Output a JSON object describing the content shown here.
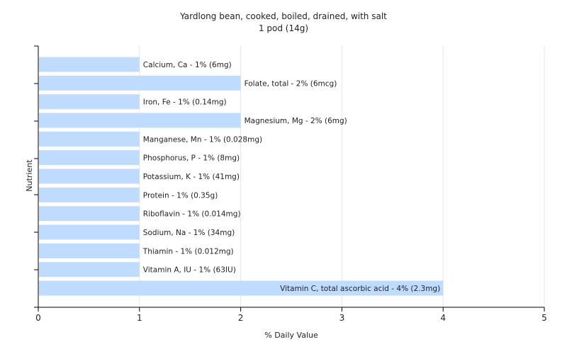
{
  "chart_data": {
    "type": "bar",
    "orientation": "horizontal",
    "title": "Yardlong bean, cooked, boiled, drained, with salt",
    "subtitle": "1 pod (14g)",
    "xlabel": "% Daily Value",
    "ylabel": "Nutrient",
    "xlim": [
      0,
      5
    ],
    "xticks": [
      "0",
      "1",
      "2",
      "3",
      "4",
      "5"
    ],
    "grid": "vertical",
    "bar_color": "#bfdcff",
    "categories": [
      "Calcium, Ca",
      "Folate, total",
      "Iron, Fe",
      "Magnesium, Mg",
      "Manganese, Mn",
      "Phosphorus, P",
      "Potassium, K",
      "Protein",
      "Riboflavin",
      "Sodium, Na",
      "Thiamin",
      "Vitamin A, IU",
      "Vitamin C, total ascorbic acid"
    ],
    "values": [
      1,
      2,
      1,
      2,
      1,
      1,
      1,
      1,
      1,
      1,
      1,
      1,
      4
    ],
    "labels": [
      "Calcium, Ca - 1% (6mg)",
      "Folate, total - 2% (6mcg)",
      "Iron, Fe - 1% (0.14mg)",
      "Magnesium, Mg - 2% (6mg)",
      "Manganese, Mn - 1% (0.028mg)",
      "Phosphorus, P - 1% (8mg)",
      "Potassium, K - 1% (41mg)",
      "Protein - 1% (0.35g)",
      "Riboflavin - 1% (0.014mg)",
      "Sodium, Na - 1% (34mg)",
      "Thiamin - 1% (0.012mg)",
      "Vitamin A, IU - 1% (63IU)",
      "Vitamin C, total ascorbic acid - 4% (2.3mg)"
    ]
  }
}
